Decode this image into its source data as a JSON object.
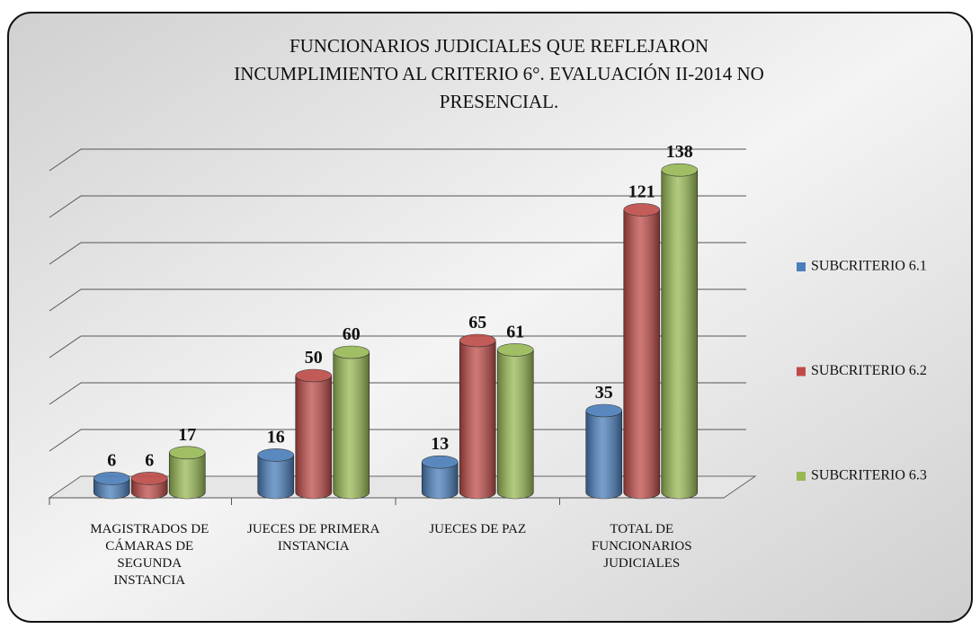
{
  "chart_data": {
    "type": "bar3d",
    "title": "FUNCIONARIOS JUDICIALES QUE REFLEJARON INCUMPLIMIENTO AL CRITERIO 6°. EVALUACIÓN II-2014 NO PRESENCIAL.",
    "categories": [
      "MAGISTRADOS DE CÁMARAS DE SEGUNDA INSTANCIA",
      "JUECES DE PRIMERA INSTANCIA",
      "JUECES DE PAZ",
      "TOTAL DE FUNCIONARIOS JUDICIALES"
    ],
    "series": [
      {
        "name": "SUBCRITERIO 6.1",
        "color": "#4a7ebb",
        "values": [
          6,
          16,
          13,
          35
        ]
      },
      {
        "name": "SUBCRITERIO 6.2",
        "color": "#be4b48",
        "values": [
          6,
          50,
          65,
          121
        ]
      },
      {
        "name": "SUBCRITERIO 6.3",
        "color": "#98b954",
        "values": [
          17,
          60,
          61,
          138
        ]
      }
    ],
    "ylim": [
      0,
      140
    ],
    "yticks": [
      0,
      20,
      40,
      60,
      80,
      100,
      120,
      140
    ],
    "grid": true,
    "legend": "right"
  }
}
